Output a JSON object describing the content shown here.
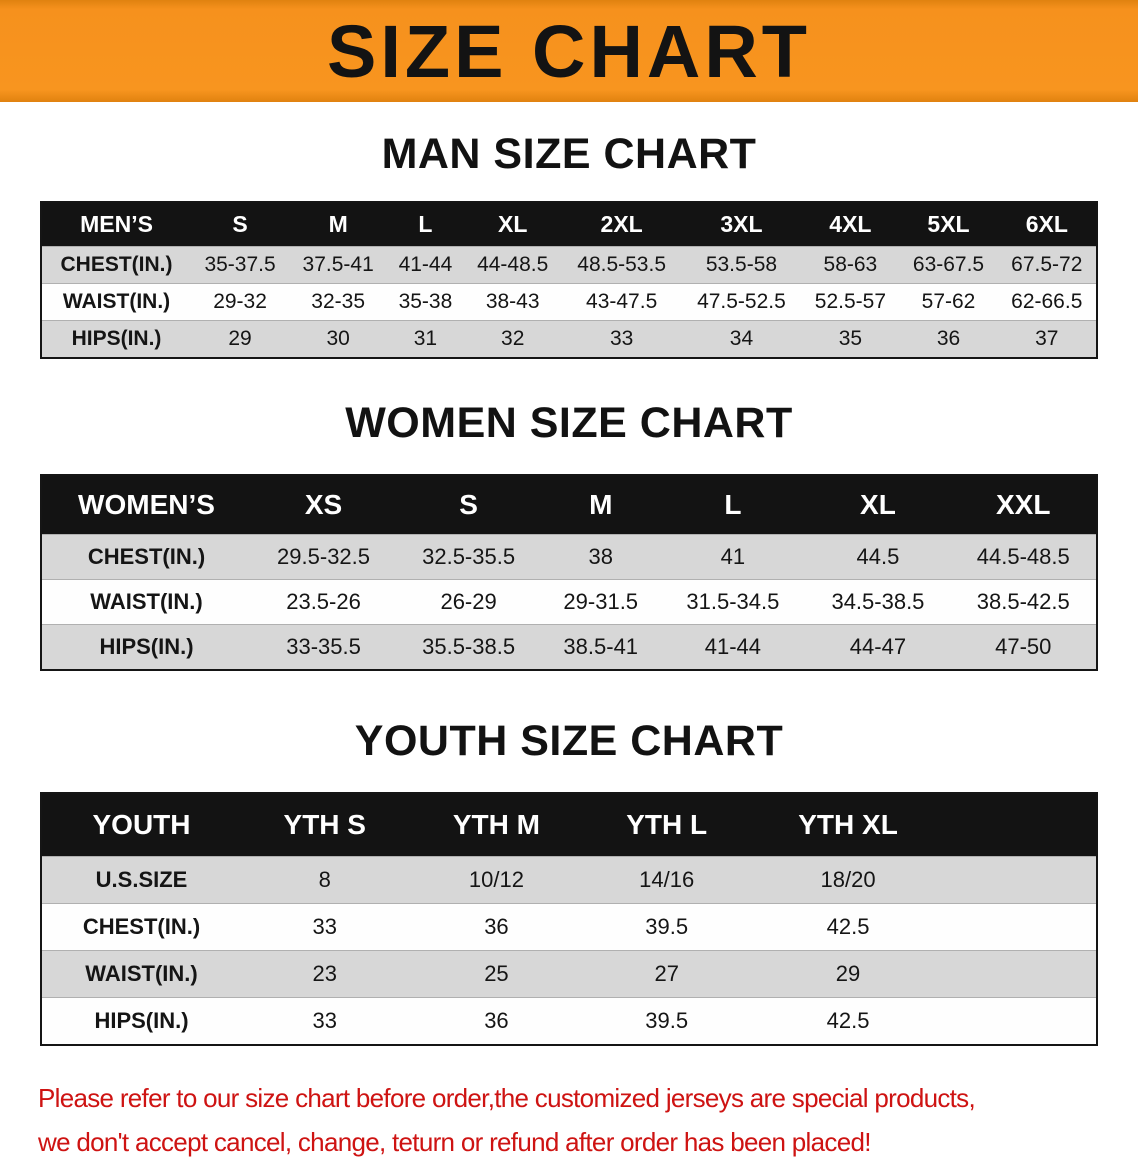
{
  "banner": {
    "title": "SIZE CHART",
    "background_color": "#F7941E"
  },
  "sections": [
    {
      "id": "men",
      "heading": "MAN SIZE CHART",
      "table": {
        "header": [
          "MEN’S",
          "S",
          "M",
          "L",
          "XL",
          "2XL",
          "3XL",
          "4XL",
          "5XL",
          "6XL"
        ],
        "rows": [
          [
            "CHEST(IN.)",
            "35-37.5",
            "37.5-41",
            "41-44",
            "44-48.5",
            "48.5-53.5",
            "53.5-58",
            "58-63",
            "63-67.5",
            "67.5-72"
          ],
          [
            "WAIST(IN.)",
            "29-32",
            "32-35",
            "35-38",
            "38-43",
            "43-47.5",
            "47.5-52.5",
            "52.5-57",
            "57-62",
            "62-66.5"
          ],
          [
            "HIPS(IN.)",
            "29",
            "30",
            "31",
            "32",
            "33",
            "34",
            "35",
            "36",
            "37"
          ]
        ]
      }
    },
    {
      "id": "women",
      "heading": "WOMEN SIZE CHART",
      "table": {
        "header": [
          "WOMEN’S",
          "XS",
          "S",
          "M",
          "L",
          "XL",
          "XXL"
        ],
        "rows": [
          [
            "CHEST(IN.)",
            "29.5-32.5",
            "32.5-35.5",
            "38",
            "41",
            "44.5",
            "44.5-48.5"
          ],
          [
            "WAIST(IN.)",
            "23.5-26",
            "26-29",
            "29-31.5",
            "31.5-34.5",
            "34.5-38.5",
            "38.5-42.5"
          ],
          [
            "HIPS(IN.)",
            "33-35.5",
            "35.5-38.5",
            "38.5-41",
            "41-44",
            "44-47",
            "47-50"
          ]
        ]
      }
    },
    {
      "id": "youth",
      "heading": "YOUTH SIZE CHART",
      "table": {
        "header": [
          "YOUTH",
          "YTH S",
          "YTH M",
          "YTH L",
          "YTH XL"
        ],
        "rows": [
          [
            "U.S.SIZE",
            "8",
            "10/12",
            "14/16",
            "18/20"
          ],
          [
            "CHEST(IN.)",
            "33",
            "36",
            "39.5",
            "42.5"
          ],
          [
            "WAIST(IN.)",
            "23",
            "25",
            "27",
            "29"
          ],
          [
            "HIPS(IN.)",
            "33",
            "36",
            "39.5",
            "42.5"
          ]
        ]
      }
    }
  ],
  "footer": {
    "line1": "Please refer to our size chart before order,the customized jerseys are special products,",
    "line2": "we don't accept cancel, change, teturn or refund after order has been placed!",
    "text_color": "#CE1312"
  }
}
